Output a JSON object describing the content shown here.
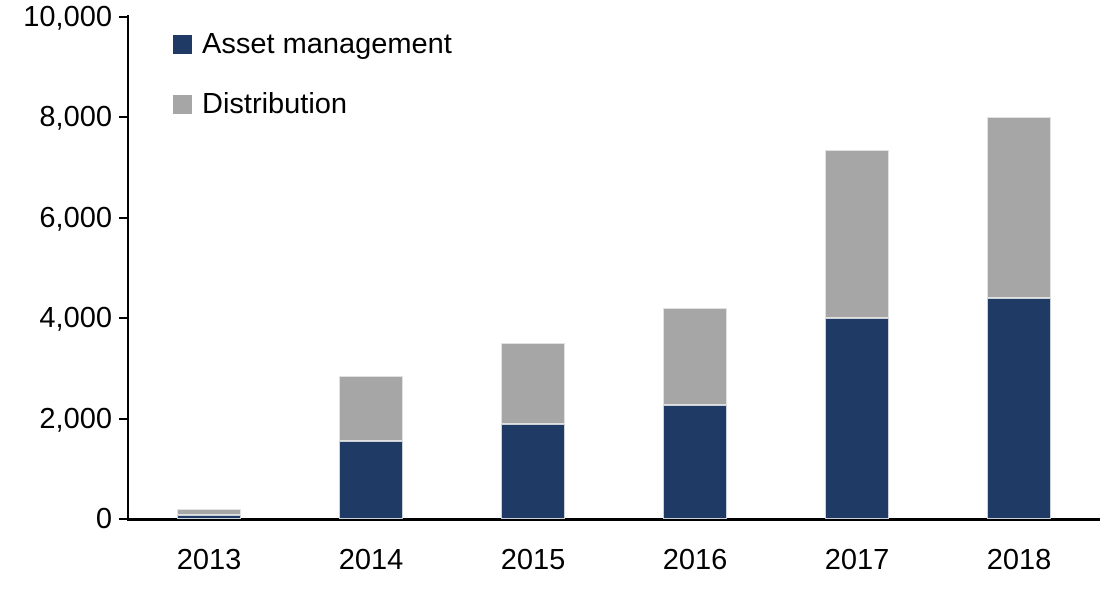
{
  "chart_data": {
    "type": "bar",
    "stacked": true,
    "title": "",
    "xlabel": "",
    "ylabel": "",
    "categories": [
      "2013",
      "2014",
      "2015",
      "2016",
      "2017",
      "2018"
    ],
    "series": [
      {
        "name": "Asset management",
        "color": "#1f3a64",
        "values": [
          80,
          1550,
          1900,
          2270,
          4000,
          4400
        ]
      },
      {
        "name": "Distribution",
        "color": "#a6a6a6",
        "values": [
          120,
          1300,
          1600,
          1930,
          3350,
          3600
        ]
      }
    ],
    "totals": [
      200,
      2850,
      3500,
      4200,
      7350,
      8000
    ],
    "ylim": [
      0,
      10000
    ],
    "yticks": [
      0,
      2000,
      4000,
      6000,
      8000,
      10000
    ],
    "ytick_labels": [
      "0",
      "2,000",
      "4,000",
      "6,000",
      "8,000",
      "10,000"
    ],
    "legend_position": "top-left",
    "grid": false,
    "background_color": "#ffffff",
    "axis_color": "#000000"
  }
}
